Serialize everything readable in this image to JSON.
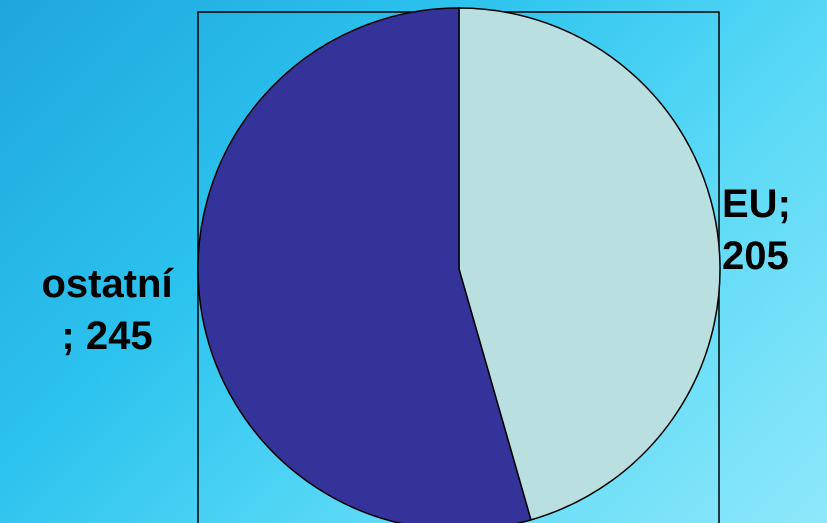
{
  "chart_data": {
    "type": "pie",
    "slices": [
      {
        "label": "EU",
        "value": 205,
        "color": "#b9dfe1"
      },
      {
        "label": "ostatní",
        "value": 245,
        "color": "#333399"
      }
    ],
    "start_angle": "12 o'clock",
    "direction": "clockwise",
    "data_labels": {
      "eu": "EU;\n205",
      "ostatni": "ostatní\n; 245"
    }
  }
}
